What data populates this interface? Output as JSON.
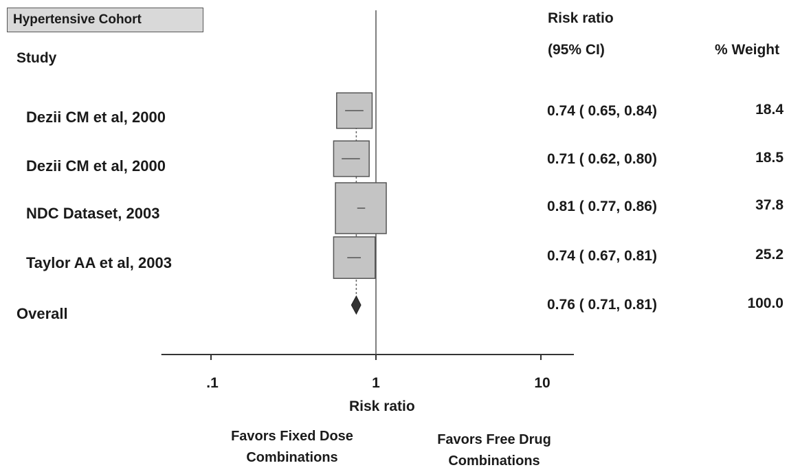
{
  "cohort_label": "Hypertensive Cohort",
  "headers": {
    "study": "Study",
    "risk_ratio_line1": "Risk ratio",
    "risk_ratio_line2": "(95% CI)",
    "weight": "% Weight"
  },
  "chart_data": {
    "type": "forest",
    "xlabel": "Risk ratio",
    "x_scale": "log",
    "xlim": [
      0.05,
      20
    ],
    "x_ticks": [
      0.1,
      1,
      10
    ],
    "x_tick_labels": [
      ".1",
      "1",
      "10"
    ],
    "reference_line": 1,
    "studies": [
      {
        "name": "Dezii CM et al, 2000",
        "rr": 0.74,
        "lower": 0.65,
        "upper": 0.84,
        "ci_text": "0.74 ( 0.65, 0.84)",
        "weight": 18.4,
        "weight_text": "18.4"
      },
      {
        "name": "Dezii CM et al, 2000",
        "rr": 0.71,
        "lower": 0.62,
        "upper": 0.8,
        "ci_text": "0.71 ( 0.62, 0.80)",
        "weight": 18.5,
        "weight_text": "18.5"
      },
      {
        "name": "NDC Dataset, 2003",
        "rr": 0.81,
        "lower": 0.77,
        "upper": 0.86,
        "ci_text": "0.81 ( 0.77, 0.86)",
        "weight": 37.8,
        "weight_text": "37.8"
      },
      {
        "name": "Taylor AA et al, 2003",
        "rr": 0.74,
        "lower": 0.67,
        "upper": 0.81,
        "ci_text": "0.74 ( 0.67, 0.81)",
        "weight": 25.2,
        "weight_text": "25.2"
      }
    ],
    "overall": {
      "name": "Overall",
      "rr": 0.76,
      "lower": 0.71,
      "upper": 0.81,
      "ci_text": "0.76 ( 0.71, 0.81)",
      "weight": 100.0,
      "weight_text": "100.0"
    },
    "favors_left": [
      "Favors Fixed Dose",
      "Combinations"
    ],
    "favors_right": [
      "Favors Free Drug",
      "Combinations"
    ]
  }
}
